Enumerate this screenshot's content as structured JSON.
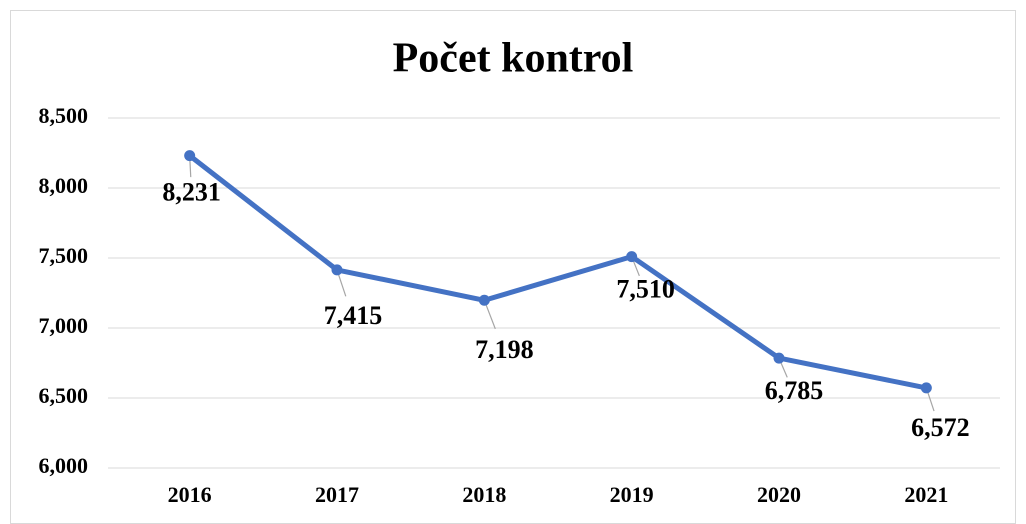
{
  "chart_data": {
    "type": "line",
    "title": "Počet kontrol",
    "categories": [
      "2016",
      "2017",
      "2018",
      "2019",
      "2020",
      "2021"
    ],
    "values": [
      8231,
      7415,
      7198,
      7510,
      6785,
      6572
    ],
    "value_labels": [
      "8,231",
      "7,415",
      "7,198",
      "7,510",
      "6,785",
      "6,572"
    ],
    "color": "#4472c4",
    "ylim": [
      6000,
      8500
    ],
    "yticks": [
      {
        "value": 6000,
        "label": "6,000"
      },
      {
        "value": 6500,
        "label": "6,500"
      },
      {
        "value": 7000,
        "label": "7,000"
      },
      {
        "value": 7500,
        "label": "7,500"
      },
      {
        "value": 8000,
        "label": "8,000"
      },
      {
        "value": 8500,
        "label": "8,500"
      }
    ],
    "grid": true
  }
}
